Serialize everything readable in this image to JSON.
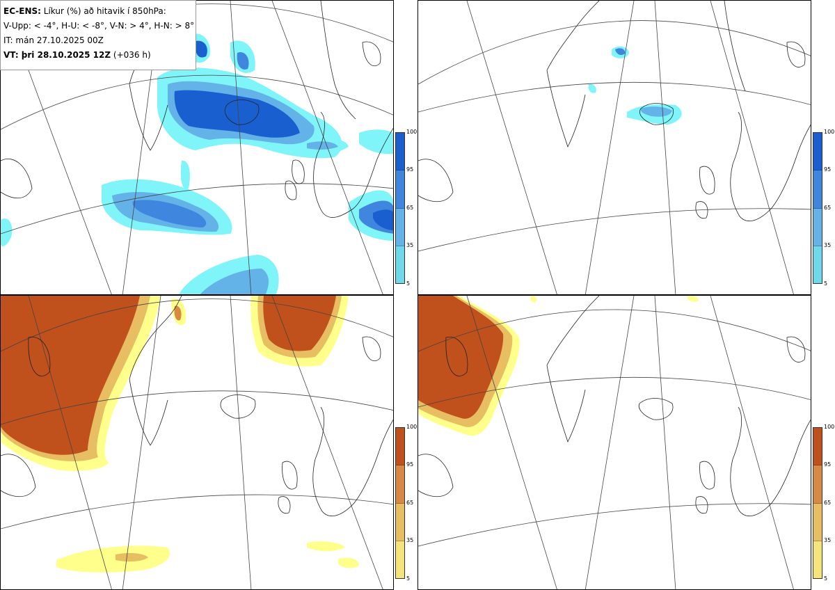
{
  "info": {
    "model": "EC-ENS:",
    "title": "Líkur (%) að hitavik í 850hPa:",
    "thresholds": "V-Upp: < -4°, H-U: < -8°, V-N: > 4°, H-N: > 8°",
    "initial_time": "IT: mán 27.10.2025 00Z",
    "valid_label": "VT: þri 28.10.2025 12Z",
    "lead_time": "(+036 h)"
  },
  "colorbars": {
    "cold": {
      "ticks": [
        "100",
        "95",
        "65",
        "35",
        "5"
      ],
      "colors": [
        "#1a5fcf",
        "#3f86de",
        "#63b3e8",
        "#6fd9ec",
        "#7ff5fa"
      ]
    },
    "warm": {
      "ticks": [
        "100",
        "95",
        "65",
        "35",
        "5"
      ],
      "colors": [
        "#c0501c",
        "#d78a44",
        "#e8be62",
        "#f4e47a",
        "#ffff8c"
      ]
    }
  },
  "panels": [
    {
      "name": "V-Upp",
      "fill": "cold"
    },
    {
      "name": "H-U",
      "fill": "cold"
    },
    {
      "name": "V-N",
      "fill": "warm"
    },
    {
      "name": "H-N",
      "fill": "warm"
    }
  ]
}
